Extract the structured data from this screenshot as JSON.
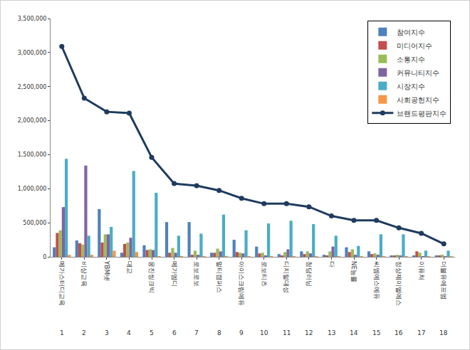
{
  "chart_data": {
    "type": "bar",
    "categories": [
      "메가스터디교육",
      "비상교육",
      "YBM넷",
      "대교",
      "웅진씽크빅",
      "메가엠디",
      "로보로보",
      "멀티캠퍼스",
      "아이스크림에듀",
      "로보티즈",
      "디지털대성",
      "청담러닝",
      "다",
      "NE능률",
      "씨엠에스에듀",
      "정상제이엘에스",
      "이퓨쳐",
      "더블유에프엠"
    ],
    "ranks": [
      1,
      2,
      3,
      4,
      5,
      6,
      7,
      8,
      9,
      10,
      11,
      12,
      13,
      14,
      15,
      16,
      17,
      18
    ],
    "series": [
      {
        "name": "참여지수",
        "color": "#4F81BD",
        "type": "bar",
        "values": [
          140000,
          240000,
          700000,
          60000,
          170000,
          510000,
          510000,
          60000,
          250000,
          150000,
          40000,
          80000,
          30000,
          140000,
          80000,
          20000,
          20000,
          20000
        ]
      },
      {
        "name": "미디어지수",
        "color": "#C0504D",
        "type": "bar",
        "values": [
          350000,
          200000,
          210000,
          190000,
          100000,
          60000,
          30000,
          60000,
          70000,
          50000,
          20000,
          40000,
          20000,
          70000,
          40000,
          20000,
          80000,
          20000
        ]
      },
      {
        "name": "소통지수",
        "color": "#9BBB59",
        "type": "bar",
        "values": [
          390000,
          180000,
          330000,
          210000,
          110000,
          130000,
          90000,
          120000,
          60000,
          60000,
          70000,
          80000,
          80000,
          110000,
          50000,
          30000,
          60000,
          30000
        ]
      },
      {
        "name": "커뮤니티지수",
        "color": "#8064A2",
        "type": "bar",
        "values": [
          730000,
          1340000,
          330000,
          280000,
          100000,
          60000,
          30000,
          80000,
          50000,
          20000,
          110000,
          50000,
          150000,
          30000,
          30000,
          20000,
          10000,
          10000
        ]
      },
      {
        "name": "시장지수",
        "color": "#4BACC6",
        "type": "bar",
        "values": [
          1440000,
          310000,
          440000,
          1260000,
          940000,
          310000,
          340000,
          620000,
          390000,
          490000,
          530000,
          480000,
          310000,
          160000,
          330000,
          330000,
          90000,
          90000
        ]
      },
      {
        "name": "사회공헌지수",
        "color": "#F79646",
        "type": "bar",
        "values": [
          30000,
          30000,
          90000,
          70000,
          10000,
          5000,
          5000,
          10000,
          10000,
          5000,
          5000,
          10000,
          5000,
          5000,
          5000,
          5000,
          5000,
          5000
        ]
      },
      {
        "name": "브랜드평판지수",
        "color": "#1F3B5E",
        "type": "line",
        "marker": "circle",
        "values": [
          3090000,
          2330000,
          2130000,
          2110000,
          1460000,
          1075000,
          1045000,
          975000,
          860000,
          780000,
          780000,
          735000,
          600000,
          535000,
          535000,
          425000,
          345000,
          190000
        ]
      }
    ],
    "ylim": [
      0,
      3500000
    ],
    "yticks": [
      0,
      {
        "value": 500000,
        "label": "500,000"
      },
      {
        "value": 1000000,
        "label": "1,000,000"
      },
      {
        "value": 1500000,
        "label": "1,500,000"
      },
      {
        "value": 2000000,
        "label": "2,000,000"
      },
      {
        "value": 2500000,
        "label": "2,500,000"
      },
      {
        "value": 3000000,
        "label": "3,000,000"
      },
      {
        "value": 3500000,
        "label": "3,500,000"
      }
    ],
    "grid": false,
    "legend": "top right"
  }
}
